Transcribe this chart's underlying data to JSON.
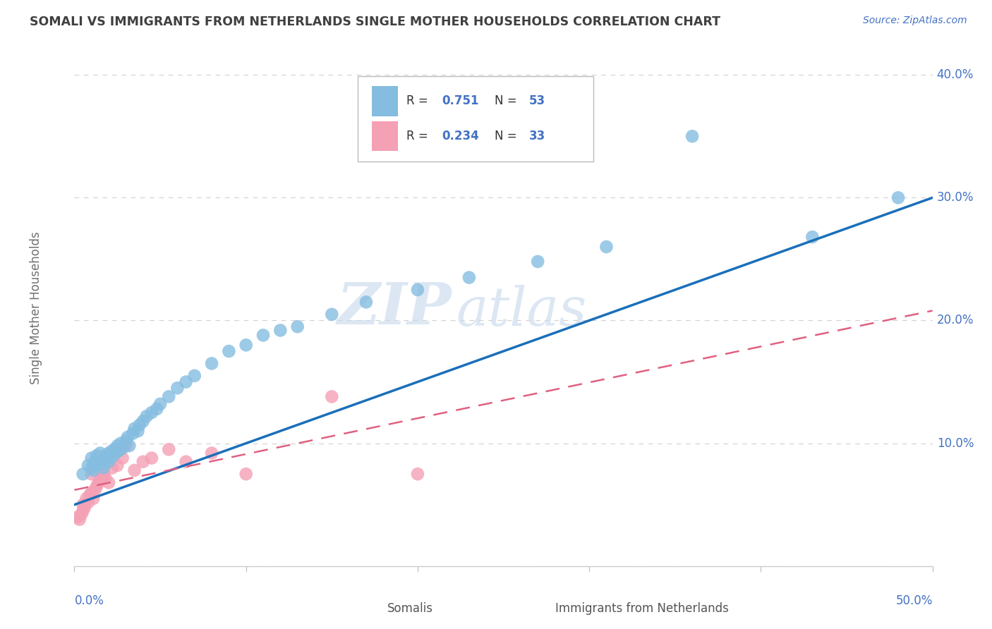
{
  "title": "SOMALI VS IMMIGRANTS FROM NETHERLANDS SINGLE MOTHER HOUSEHOLDS CORRELATION CHART",
  "source_text": "Source: ZipAtlas.com",
  "ylabel": "Single Mother Households",
  "ytick_vals": [
    0.0,
    0.1,
    0.2,
    0.3,
    0.4
  ],
  "ytick_labels": [
    "",
    "10.0%",
    "20.0%",
    "30.0%",
    "40.0%"
  ],
  "xtick_vals": [
    0.0,
    0.1,
    0.2,
    0.3,
    0.4,
    0.5
  ],
  "xlim": [
    0.0,
    0.5
  ],
  "ylim": [
    0.0,
    0.42
  ],
  "r1": "0.751",
  "n1": "53",
  "r2": "0.234",
  "n2": "33",
  "watermark_top": "ZIP",
  "watermark_bot": "atlas",
  "series1_color": "#85bde0",
  "series2_color": "#f4a0b5",
  "trendline1_color": "#1a6fba",
  "trendline2_color": "#e06080",
  "background_color": "#ffffff",
  "grid_color": "#d0d0d0",
  "title_color": "#404040",
  "axis_label_color": "#4472c4",
  "ylabel_color": "#707070",
  "somali_x": [
    0.005,
    0.008,
    0.01,
    0.01,
    0.011,
    0.012,
    0.013,
    0.015,
    0.015,
    0.016,
    0.017,
    0.018,
    0.019,
    0.02,
    0.021,
    0.022,
    0.023,
    0.024,
    0.025,
    0.026,
    0.027,
    0.028,
    0.03,
    0.031,
    0.032,
    0.034,
    0.035,
    0.037,
    0.038,
    0.04,
    0.042,
    0.045,
    0.048,
    0.05,
    0.055,
    0.06,
    0.065,
    0.07,
    0.08,
    0.09,
    0.1,
    0.11,
    0.12,
    0.13,
    0.15,
    0.17,
    0.2,
    0.23,
    0.27,
    0.31,
    0.36,
    0.43,
    0.48
  ],
  "somali_y": [
    0.075,
    0.082,
    0.08,
    0.088,
    0.078,
    0.085,
    0.09,
    0.083,
    0.092,
    0.086,
    0.08,
    0.088,
    0.091,
    0.085,
    0.093,
    0.089,
    0.095,
    0.092,
    0.098,
    0.094,
    0.1,
    0.096,
    0.102,
    0.105,
    0.098,
    0.108,
    0.112,
    0.11,
    0.115,
    0.118,
    0.122,
    0.125,
    0.128,
    0.132,
    0.138,
    0.145,
    0.15,
    0.155,
    0.165,
    0.175,
    0.18,
    0.188,
    0.192,
    0.195,
    0.205,
    0.215,
    0.225,
    0.235,
    0.248,
    0.26,
    0.35,
    0.268,
    0.3
  ],
  "neth_x": [
    0.002,
    0.003,
    0.004,
    0.005,
    0.005,
    0.006,
    0.007,
    0.008,
    0.009,
    0.01,
    0.01,
    0.011,
    0.012,
    0.013,
    0.014,
    0.015,
    0.016,
    0.017,
    0.018,
    0.02,
    0.022,
    0.025,
    0.028,
    0.03,
    0.035,
    0.04,
    0.045,
    0.055,
    0.065,
    0.08,
    0.1,
    0.15,
    0.2
  ],
  "neth_y": [
    0.04,
    0.038,
    0.042,
    0.045,
    0.05,
    0.048,
    0.055,
    0.052,
    0.058,
    0.06,
    0.075,
    0.055,
    0.062,
    0.065,
    0.068,
    0.07,
    0.072,
    0.075,
    0.072,
    0.068,
    0.08,
    0.082,
    0.088,
    0.098,
    0.078,
    0.085,
    0.088,
    0.095,
    0.085,
    0.092,
    0.075,
    0.138,
    0.075
  ],
  "trendline1_x": [
    0.0,
    0.5
  ],
  "trendline1_y": [
    0.05,
    0.3
  ],
  "trendline2_x": [
    0.0,
    0.5
  ],
  "trendline2_y": [
    0.062,
    0.208
  ]
}
